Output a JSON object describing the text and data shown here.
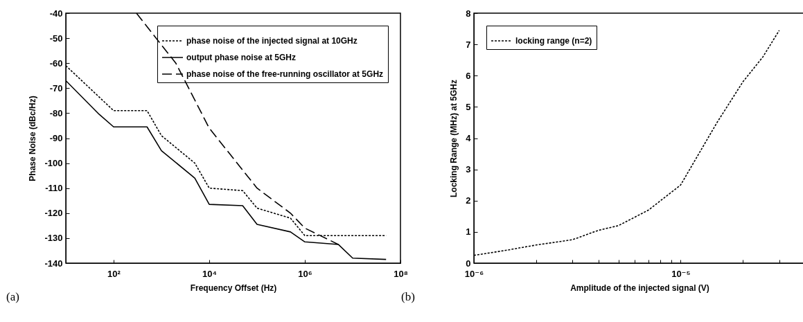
{
  "chart_data": [
    {
      "type": "line",
      "xlabel": "Frequency Offset (Hz)",
      "ylabel": "Phase Noise (dBc/Hz)",
      "log": "x",
      "grid": false,
      "legend": "top right",
      "xlim": [
        10,
        100000000
      ],
      "xticks": [
        {
          "value": 100,
          "label": "10²"
        },
        {
          "value": 10000,
          "label": "10⁴"
        },
        {
          "value": 1000000,
          "label": "10⁶"
        },
        {
          "value": 100000000,
          "label": "10⁸"
        }
      ],
      "ylim": [
        -140,
        -40
      ],
      "yticks": [
        -140,
        -130,
        -120,
        -110,
        -100,
        -90,
        -80,
        -70,
        -60,
        -50,
        -40
      ],
      "annotations": [
        "(a)"
      ],
      "series": [
        {
          "name": "phase noise of the injected signal at 10GHz",
          "color": "#000000",
          "line_style": "dotted",
          "x": [
            10,
            100,
            500,
            1000,
            5000,
            10000,
            50000,
            100000,
            500000,
            1000000,
            50000000
          ],
          "values": [
            -61,
            -79,
            -79,
            -89,
            -100,
            -110,
            -111,
            -118,
            -122,
            -129,
            -129
          ]
        },
        {
          "name": "output phase noise at 5GHz",
          "color": "#000000",
          "line_style": "solid",
          "x": [
            10,
            50,
            100,
            500,
            1000,
            5000,
            10000,
            50000,
            100000,
            500000,
            1000000,
            5000000,
            10000000,
            50000000
          ],
          "values": [
            -67,
            -80.5,
            -85.5,
            -85.5,
            -95,
            -106,
            -116.5,
            -117,
            -124.5,
            -127.5,
            -131.5,
            -132.5,
            -138,
            -138.5
          ]
        },
        {
          "name": "phase noise of the free-running oscillator at 5GHz",
          "color": "#000000",
          "line_style": "dashed",
          "x": [
            300,
            2000,
            10000,
            100000,
            500000,
            1000000,
            5000000
          ],
          "values": [
            -40,
            -60,
            -86,
            -110,
            -120,
            -126,
            -132.5
          ]
        }
      ]
    },
    {
      "type": "line",
      "xlabel": "Amplitude of the injected signal (V)",
      "ylabel": "Locking Range (MHz) at 5GHz",
      "log": "x",
      "grid": false,
      "legend": "top left",
      "xlim": [
        1e-06,
        4e-05
      ],
      "xticks": [
        {
          "value": 1e-06,
          "label": "10⁻⁶"
        },
        {
          "value": 2e-06,
          "label": null
        },
        {
          "value": 3e-06,
          "label": null
        },
        {
          "value": 4e-06,
          "label": null
        },
        {
          "value": 5e-06,
          "label": null
        },
        {
          "value": 6e-06,
          "label": null
        },
        {
          "value": 7e-06,
          "label": null
        },
        {
          "value": 8e-06,
          "label": null
        },
        {
          "value": 9e-06,
          "label": null
        },
        {
          "value": 1e-05,
          "label": "10⁻⁵"
        },
        {
          "value": 2e-05,
          "label": null
        },
        {
          "value": 3e-05,
          "label": null
        }
      ],
      "ylim": [
        0,
        8
      ],
      "yticks": [
        0,
        1,
        2,
        3,
        4,
        5,
        6,
        7,
        8
      ],
      "annotations": [
        "(b)"
      ],
      "series": [
        {
          "name": "locking range (n=2)",
          "color": "#000000",
          "line_style": "dotted",
          "x": [
            1e-06,
            1.4e-06,
            2e-06,
            3e-06,
            4e-06,
            5e-06,
            7e-06,
            1e-05,
            1.2e-05,
            1.5e-05,
            2e-05,
            2.5e-05,
            3e-05
          ],
          "values": [
            0.25,
            0.4,
            0.58,
            0.75,
            1.05,
            1.2,
            1.7,
            2.5,
            3.4,
            4.5,
            5.8,
            6.6,
            7.45
          ]
        }
      ]
    }
  ]
}
